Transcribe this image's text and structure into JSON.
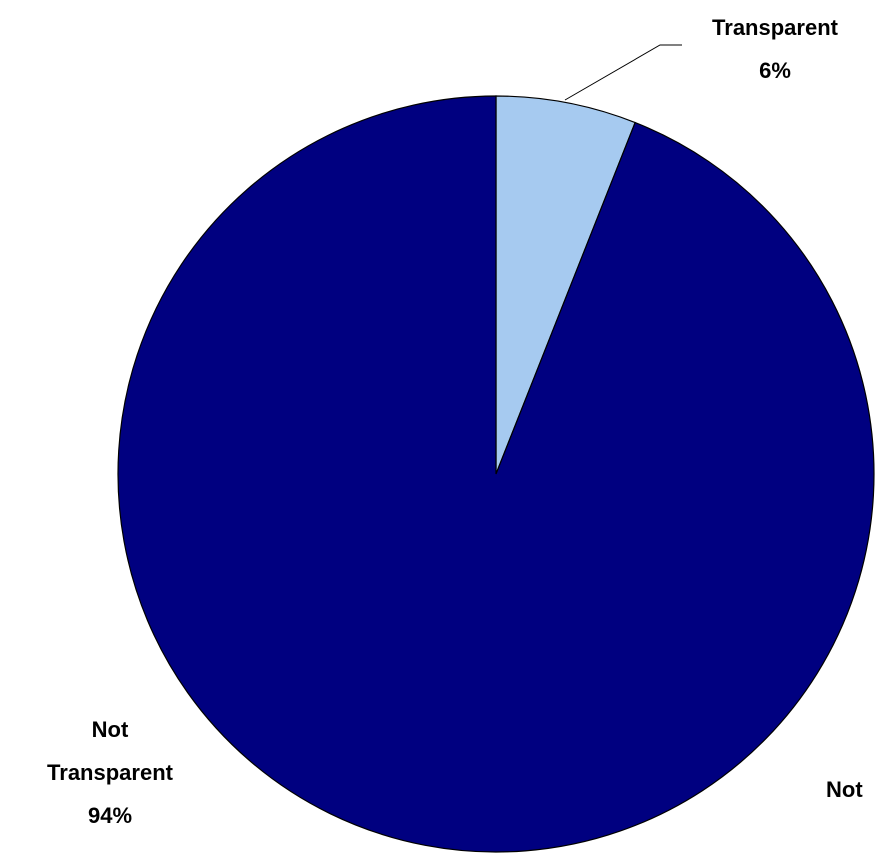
{
  "chart_data": {
    "type": "pie",
    "categories": [
      "Transparent",
      "Not Transparent"
    ],
    "values": [
      6,
      94
    ],
    "value_labels": [
      "6%",
      "94%"
    ],
    "colors": [
      "#a6caf0",
      "#000080"
    ],
    "annotations": [
      "Not"
    ]
  }
}
